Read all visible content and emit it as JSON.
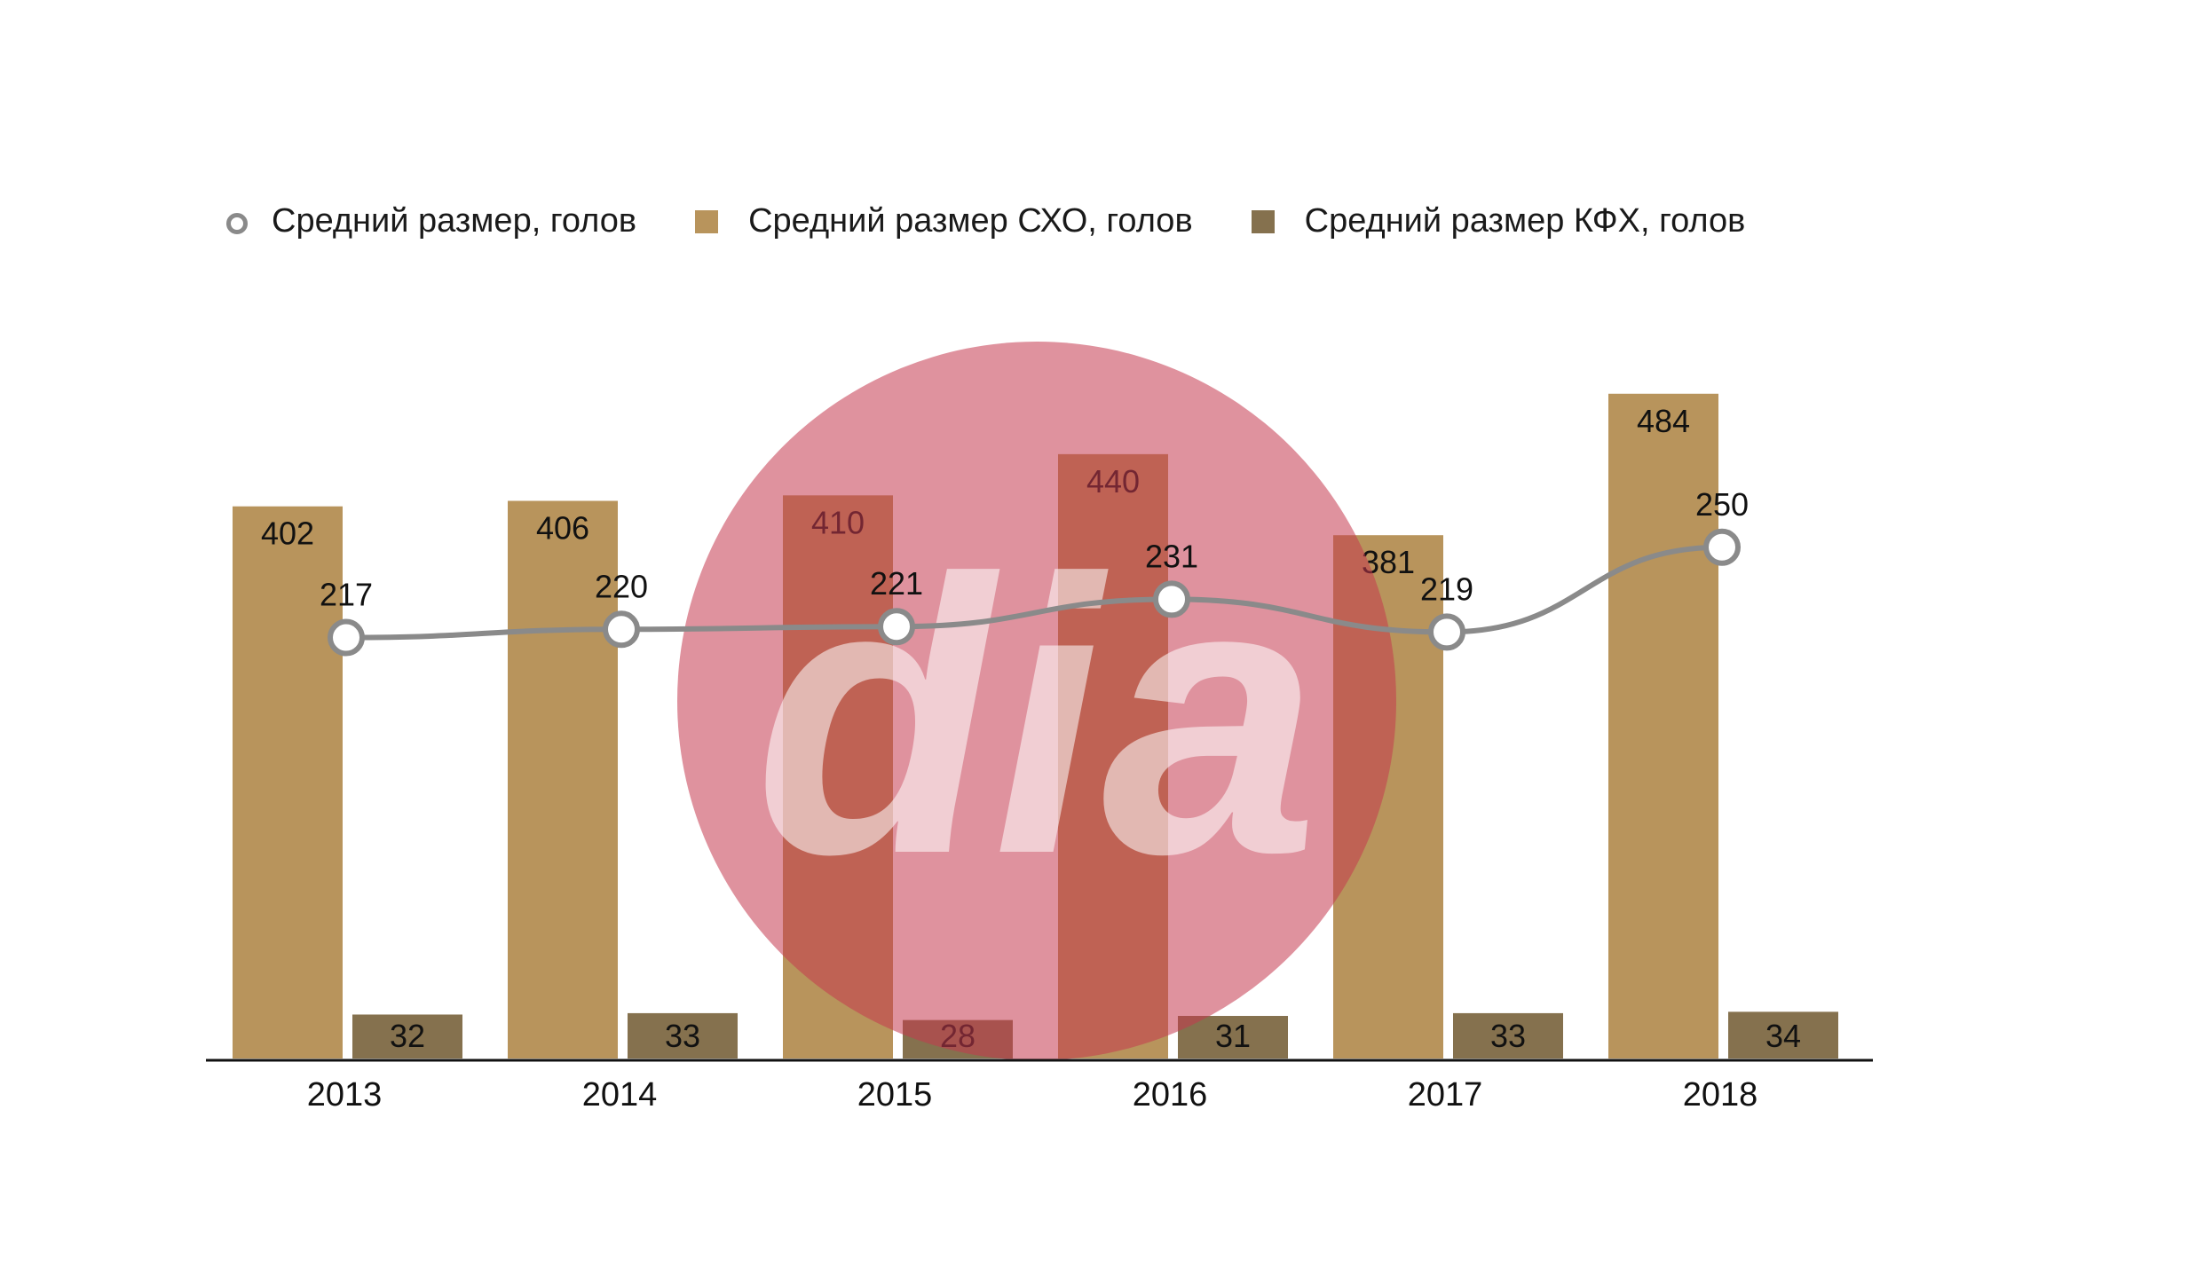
{
  "chart_data": {
    "type": "bar",
    "categories": [
      "2013",
      "2014",
      "2015",
      "2016",
      "2017",
      "2018"
    ],
    "series": [
      {
        "name": "Средний размер СХО, голов",
        "kind": "bar",
        "color": "#b8945c",
        "values": [
          402,
          406,
          410,
          440,
          381,
          484
        ]
      },
      {
        "name": "Средний размер КФХ, голов",
        "kind": "bar",
        "color": "#85714e",
        "values": [
          32,
          33,
          28,
          31,
          33,
          34
        ]
      },
      {
        "name": "Средний размер, голов",
        "kind": "line",
        "color": "#8a8a8a",
        "values": [
          217,
          220,
          221,
          231,
          219,
          250
        ]
      }
    ],
    "legend_position": "top-left",
    "grid": false,
    "watermark": "dia"
  }
}
